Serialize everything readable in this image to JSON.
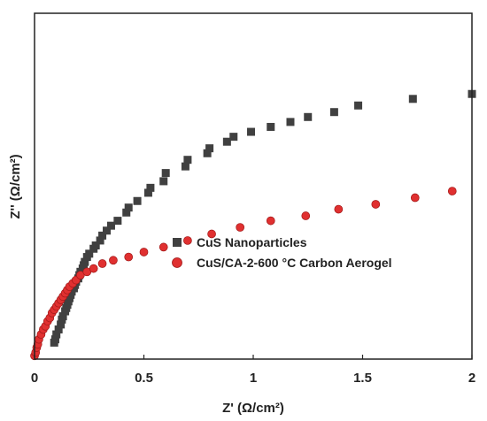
{
  "chart_data": {
    "type": "scatter",
    "xlabel": "Z' (Ω/cm²)",
    "ylabel": "Z'' (Ω/cm²)",
    "xlim": [
      0,
      2
    ],
    "ylim": [
      0,
      2.1
    ],
    "x_ticks": [
      "0",
      "0.5",
      "1",
      "1.5",
      "2"
    ],
    "y_ticks_shown": false,
    "legend_placement": "center-right",
    "series": [
      {
        "name": "CuS Nanoparticles",
        "marker": "square",
        "color": "#404040",
        "x": [
          0.09,
          0.095,
          0.1,
          0.11,
          0.12,
          0.125,
          0.13,
          0.14,
          0.145,
          0.15,
          0.155,
          0.16,
          0.165,
          0.17,
          0.18,
          0.185,
          0.19,
          0.2,
          0.205,
          0.21,
          0.22,
          0.225,
          0.23,
          0.24,
          0.25,
          0.27,
          0.28,
          0.3,
          0.31,
          0.33,
          0.35,
          0.38,
          0.42,
          0.43,
          0.47,
          0.52,
          0.53,
          0.59,
          0.6,
          0.69,
          0.7,
          0.79,
          0.8,
          0.88,
          0.91,
          0.99,
          1.08,
          1.17,
          1.25,
          1.37,
          1.48,
          1.73,
          2.0
        ],
        "y": [
          0.1,
          0.12,
          0.15,
          0.18,
          0.21,
          0.24,
          0.26,
          0.29,
          0.31,
          0.33,
          0.35,
          0.37,
          0.39,
          0.41,
          0.43,
          0.45,
          0.47,
          0.49,
          0.51,
          0.53,
          0.55,
          0.57,
          0.59,
          0.62,
          0.64,
          0.67,
          0.69,
          0.72,
          0.75,
          0.78,
          0.81,
          0.84,
          0.89,
          0.92,
          0.96,
          1.01,
          1.04,
          1.08,
          1.13,
          1.17,
          1.21,
          1.25,
          1.28,
          1.32,
          1.35,
          1.38,
          1.41,
          1.44,
          1.47,
          1.5,
          1.54,
          1.58,
          1.61
        ]
      },
      {
        "name": "CuS/CA-2-600 °C Carbon Aerogel",
        "marker": "circle",
        "color": "#e03030",
        "x": [
          0.0,
          0.005,
          0.01,
          0.015,
          0.02,
          0.03,
          0.04,
          0.05,
          0.06,
          0.07,
          0.08,
          0.09,
          0.1,
          0.11,
          0.12,
          0.13,
          0.14,
          0.15,
          0.16,
          0.175,
          0.19,
          0.21,
          0.24,
          0.27,
          0.31,
          0.36,
          0.43,
          0.5,
          0.59,
          0.7,
          0.81,
          0.94,
          1.08,
          1.24,
          1.39,
          1.56,
          1.74,
          1.91
        ],
        "y": [
          0.02,
          0.04,
          0.07,
          0.09,
          0.12,
          0.15,
          0.18,
          0.2,
          0.23,
          0.25,
          0.28,
          0.3,
          0.32,
          0.34,
          0.36,
          0.38,
          0.4,
          0.42,
          0.44,
          0.46,
          0.48,
          0.51,
          0.53,
          0.55,
          0.58,
          0.6,
          0.62,
          0.65,
          0.68,
          0.72,
          0.76,
          0.8,
          0.84,
          0.87,
          0.91,
          0.94,
          0.98,
          1.02
        ]
      }
    ]
  }
}
